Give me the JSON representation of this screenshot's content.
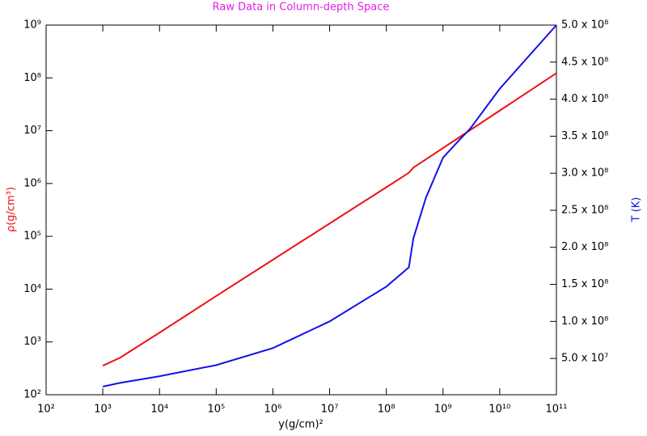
{
  "chart_data": {
    "type": "line",
    "title": "Raw Data in Column-depth Space",
    "x_label": "y(g/cm)²",
    "y_label": "ρ(g/cm³)",
    "y2_label": "T (K)",
    "xscale": "log",
    "yscale": "log",
    "xlim": [
      100,
      100000000000
    ],
    "ylim": [
      100,
      1000000000
    ],
    "y2lim": [
      1000000,
      500000000
    ],
    "xticks": [
      {
        "value": 100,
        "label": "10²"
      },
      {
        "value": 1000,
        "label": "10³"
      },
      {
        "value": 10000,
        "label": "10⁴"
      },
      {
        "value": 100000,
        "label": "10⁵"
      },
      {
        "value": 1000000,
        "label": "10⁶"
      },
      {
        "value": 10000000,
        "label": "10⁷"
      },
      {
        "value": 100000000,
        "label": "10⁸"
      },
      {
        "value": 1000000000,
        "label": "10⁹"
      },
      {
        "value": 10000000000,
        "label": "10¹⁰"
      },
      {
        "value": 100000000000,
        "label": "10¹¹"
      }
    ],
    "yticks": [
      {
        "value": 100,
        "label": "10²"
      },
      {
        "value": 1000,
        "label": "10³"
      },
      {
        "value": 10000,
        "label": "10⁴"
      },
      {
        "value": 100000,
        "label": "10⁵"
      },
      {
        "value": 1000000,
        "label": "10⁶"
      },
      {
        "value": 10000000,
        "label": "10⁷"
      },
      {
        "value": 100000000,
        "label": "10⁸"
      },
      {
        "value": 1000000000,
        "label": "10⁹"
      }
    ],
    "y2ticks": [
      {
        "value": 50000000,
        "label": "5.0 x 10⁷"
      },
      {
        "value": 100000000,
        "label": "1.0 x 10⁸"
      },
      {
        "value": 150000000,
        "label": "1.5 x 10⁸"
      },
      {
        "value": 200000000,
        "label": "2.0 x 10⁸"
      },
      {
        "value": 250000000,
        "label": "2.5 x 10⁸"
      },
      {
        "value": 300000000,
        "label": "3.0 x 10⁸"
      },
      {
        "value": 350000000,
        "label": "3.5 x 10⁸"
      },
      {
        "value": 400000000,
        "label": "4.0 x 10⁸"
      },
      {
        "value": 450000000,
        "label": "4.5 x 10⁸"
      },
      {
        "value": 500000000,
        "label": "5.0 x 10⁸"
      }
    ],
    "series": [
      {
        "color": "#ee1111",
        "axis": "y",
        "x": [
          1000,
          2000,
          10000,
          100000,
          1000000,
          10000000,
          100000000,
          250000000,
          300000000,
          1000000000,
          10000000000,
          100000000000
        ],
        "values": [
          355,
          500,
          1500,
          7400,
          36000,
          175000,
          850000,
          1600000,
          2000000,
          4700000,
          24000000,
          123000000
        ]
      },
      {
        "color": "#1111ee",
        "axis": "y2",
        "x": [
          1000,
          2000,
          10000,
          100000,
          1000000,
          10000000,
          100000000,
          250000000,
          300000000,
          500000000,
          1000000000,
          2000000000,
          3000000000,
          10000000000,
          100000000000
        ],
        "values": [
          12000000,
          17000000,
          26000000,
          41000000,
          64000000,
          100000000,
          147000000,
          173000000,
          212000000,
          267000000,
          321000000,
          346000000,
          360000000,
          414000000,
          500000000
        ]
      }
    ]
  }
}
